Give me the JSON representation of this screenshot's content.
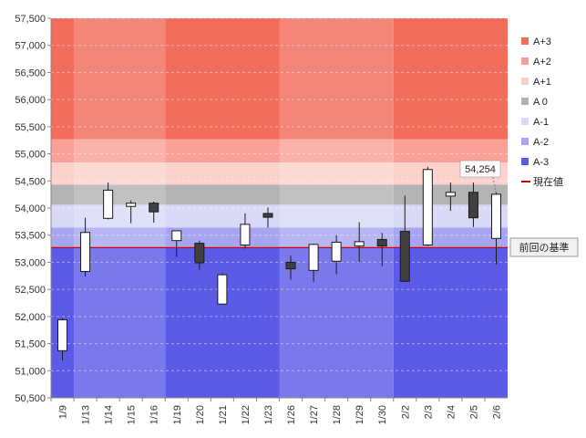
{
  "chart_data": {
    "type": "candlestick",
    "ylim": [
      50500,
      57500
    ],
    "ytick_step": 500,
    "ytick_labels": [
      "50,500",
      "51,000",
      "51,500",
      "52,000",
      "52,500",
      "53,000",
      "53,500",
      "54,000",
      "54,500",
      "55,000",
      "55,500",
      "56,000",
      "56,500",
      "57,000",
      "57,500"
    ],
    "categories": [
      "1/9",
      "1/13",
      "1/14",
      "1/15",
      "1/16",
      "1/19",
      "1/20",
      "1/21",
      "1/22",
      "1/23",
      "1/26",
      "1/27",
      "1/28",
      "1/29",
      "1/30",
      "2/2",
      "2/3",
      "2/4",
      "2/5",
      "2/6"
    ],
    "candles": [
      {
        "open": 51370,
        "close": 51940,
        "high": 51970,
        "low": 51190
      },
      {
        "open": 52830,
        "close": 53550,
        "high": 53820,
        "low": 52740
      },
      {
        "open": 53810,
        "close": 54330,
        "high": 54470,
        "low": 53790
      },
      {
        "open": 54030,
        "close": 54090,
        "high": 54140,
        "low": 53720
      },
      {
        "open": 54090,
        "close": 53930,
        "high": 54120,
        "low": 53730
      },
      {
        "open": 53400,
        "close": 53580,
        "high": 53580,
        "low": 53100
      },
      {
        "open": 53350,
        "close": 52990,
        "high": 53400,
        "low": 52860
      },
      {
        "open": 52230,
        "close": 52770,
        "high": 52800,
        "low": 52220
      },
      {
        "open": 53320,
        "close": 53700,
        "high": 53900,
        "low": 53250
      },
      {
        "open": 53900,
        "close": 53830,
        "high": 54010,
        "low": 53640
      },
      {
        "open": 53000,
        "close": 52880,
        "high": 53120,
        "low": 52680
      },
      {
        "open": 52850,
        "close": 53330,
        "high": 53340,
        "low": 52640
      },
      {
        "open": 53020,
        "close": 53370,
        "high": 53500,
        "low": 52780
      },
      {
        "open": 53300,
        "close": 53380,
        "high": 53740,
        "low": 53000
      },
      {
        "open": 53420,
        "close": 53300,
        "high": 53540,
        "low": 52930
      },
      {
        "open": 53570,
        "close": 52650,
        "high": 54230,
        "low": 52640
      },
      {
        "open": 53320,
        "close": 54710,
        "high": 54760,
        "low": 53300
      },
      {
        "open": 54220,
        "close": 54290,
        "high": 54470,
        "low": 53950
      },
      {
        "open": 54290,
        "close": 53820,
        "high": 54470,
        "low": 53650
      },
      {
        "open": 53440,
        "close": 54254,
        "high": 54290,
        "low": 52960
      }
    ],
    "background_shading": {
      "column_groups": [
        [
          0,
          0
        ],
        [
          1,
          4
        ],
        [
          5,
          9
        ],
        [
          10,
          14
        ],
        [
          15,
          19
        ]
      ],
      "bands": [
        {
          "key": "A+3",
          "from": 55270,
          "to": 57500
        },
        {
          "key": "A+2",
          "from": 54840,
          "to": 55270
        },
        {
          "key": "A+1",
          "from": 54430,
          "to": 54840
        },
        {
          "key": "A 0",
          "from": 54060,
          "to": 54430
        },
        {
          "key": "A-1",
          "from": 53640,
          "to": 54060
        },
        {
          "key": "A-2",
          "from": 53260,
          "to": 53640
        },
        {
          "key": "A-3",
          "from": 50500,
          "to": 53260
        }
      ]
    },
    "reference_line": {
      "value": 53270,
      "label": "前回の基準",
      "color": "#d40000"
    },
    "current_value": {
      "value": 54254,
      "label": "54,254"
    },
    "colors": {
      "bullish_body": "#ffffff",
      "bearish_body": "#404040",
      "candle_outline": "#1a1a1a"
    },
    "legend": {
      "placement": "right",
      "items": [
        {
          "label": "A+3",
          "color": "#f26b5b",
          "kind": "swatch"
        },
        {
          "label": "A+2",
          "color": "#f9a196",
          "kind": "swatch"
        },
        {
          "label": "A+1",
          "color": "#fdd2cd",
          "kind": "swatch"
        },
        {
          "label": "A 0",
          "color": "#b3b3b3",
          "kind": "swatch"
        },
        {
          "label": "A-1",
          "color": "#d9d9f7",
          "kind": "swatch"
        },
        {
          "label": "A-2",
          "color": "#a6a6f0",
          "kind": "swatch"
        },
        {
          "label": "A-3",
          "color": "#5b5be8",
          "kind": "swatch"
        },
        {
          "label": "現在値",
          "color": "#d40000",
          "kind": "line"
        }
      ]
    }
  }
}
